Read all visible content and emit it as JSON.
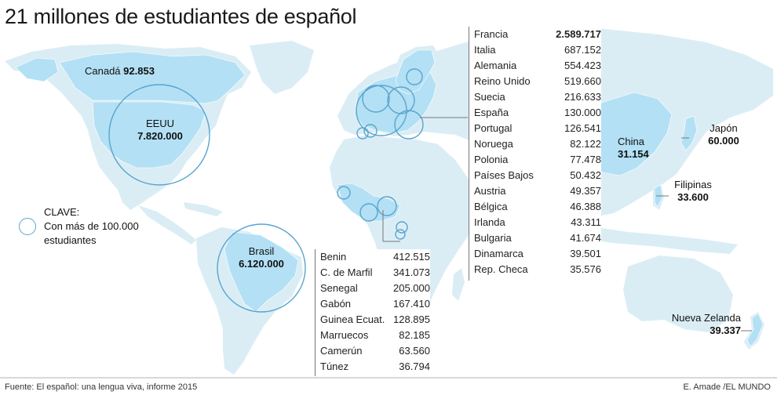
{
  "title": "21 millones de estudiantes de español",
  "labels": {
    "canada": {
      "name": "Canadá",
      "value": "92.853"
    },
    "eeuu": {
      "name": "EEUU",
      "value": "7.820.000"
    },
    "brasil": {
      "name": "Brasil",
      "value": "6.120.000"
    },
    "china": {
      "name": "China",
      "value": "31.154"
    },
    "japon": {
      "name": "Japón",
      "value": "60.000"
    },
    "filipinas": {
      "name": "Filipinas",
      "value": "33.600"
    },
    "nueva_zelanda": {
      "name": "Nueva Zelanda",
      "value": "39.337"
    }
  },
  "legend": {
    "heading": "CLAVE:",
    "line1": "Con más de 100.000",
    "line2": "estudiantes"
  },
  "europe_table": [
    {
      "name": "Francia",
      "value": "2.589.717",
      "bold": true
    },
    {
      "name": "Italia",
      "value": "687.152"
    },
    {
      "name": "Alemania",
      "value": "554.423"
    },
    {
      "name": "Reino Unido",
      "value": "519.660"
    },
    {
      "name": "Suecia",
      "value": "216.633"
    },
    {
      "name": "España",
      "value": "130.000"
    },
    {
      "name": "Portugal",
      "value": "126.541"
    },
    {
      "name": "Noruega",
      "value": "82.122"
    },
    {
      "name": "Polonia",
      "value": "77.478"
    },
    {
      "name": "Países Bajos",
      "value": "50.432"
    },
    {
      "name": "Austria",
      "value": "49.357"
    },
    {
      "name": "Bélgica",
      "value": "46.388"
    },
    {
      "name": "Irlanda",
      "value": "43.311"
    },
    {
      "name": "Bulgaria",
      "value": "41.674"
    },
    {
      "name": "Dinamarca",
      "value": "39.501"
    },
    {
      "name": "Rep. Checa",
      "value": "35.576"
    }
  ],
  "africa_table": [
    {
      "name": "Benin",
      "value": "412.515"
    },
    {
      "name": "C. de Marfil",
      "value": "341.073"
    },
    {
      "name": "Senegal",
      "value": "205.000"
    },
    {
      "name": "Gabón",
      "value": "167.410"
    },
    {
      "name": "Guinea Ecuat.",
      "value": "128.895"
    },
    {
      "name": "Marruecos",
      "value": "82.185"
    },
    {
      "name": "Camerún",
      "value": "63.560"
    },
    {
      "name": "Túnez",
      "value": "36.794"
    }
  ],
  "footer": {
    "source": "Fuente: El español: una lengua viva, informe 2015",
    "credit": "E. Amade /EL MUNDO"
  },
  "colors": {
    "land": "#daedf5",
    "highlight": "#b3e0f4",
    "circle": "#5aa4cf"
  }
}
